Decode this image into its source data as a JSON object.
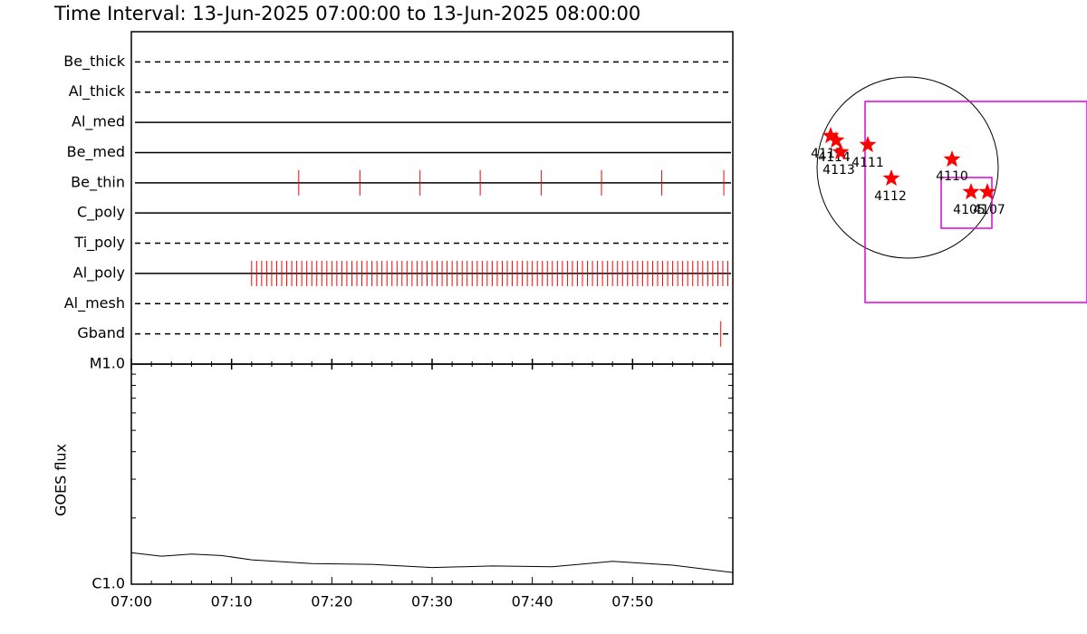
{
  "chart_data": [
    {
      "type": "timeline",
      "title": "Time Interval: 13-Jun-2025 07:00:00 to 13-Jun-2025 08:00:00",
      "xlim": [
        0,
        60
      ],
      "color": "#ff0000",
      "rows": [
        {
          "name": "Be_thick",
          "style": "dashed",
          "events": []
        },
        {
          "name": "Al_thick",
          "style": "dashed",
          "events": []
        },
        {
          "name": "Al_med",
          "style": "solid",
          "events": []
        },
        {
          "name": "Be_med",
          "style": "solid",
          "events": []
        },
        {
          "name": "Be_thin",
          "style": "solid",
          "events": [
            16.7,
            22.8,
            28.8,
            34.8,
            40.9,
            46.9,
            52.9,
            59.1
          ]
        },
        {
          "name": "C_poly",
          "style": "solid",
          "events": []
        },
        {
          "name": "Ti_poly",
          "style": "dashed",
          "events": []
        },
        {
          "name": "Al_poly",
          "style": "solid",
          "events": [
            12,
            12.5,
            13,
            13.5,
            14,
            14.5,
            15,
            15.5,
            16,
            16.5,
            17,
            17.5,
            18,
            18.5,
            19,
            19.5,
            20,
            20.5,
            21,
            21.5,
            22,
            22.5,
            23,
            23.5,
            24,
            24.5,
            25,
            25.5,
            26,
            26.5,
            27,
            27.5,
            28,
            28.5,
            29,
            29.5,
            30,
            30.5,
            31,
            31.5,
            32,
            32.5,
            33,
            33.5,
            34,
            34.5,
            35,
            35.5,
            36,
            36.5,
            37,
            37.5,
            38,
            38.5,
            39,
            39.5,
            40,
            40.5,
            41,
            41.5,
            42,
            42.5,
            43,
            43.5,
            44,
            44.5,
            45,
            45.5,
            46,
            46.5,
            47,
            47.5,
            48,
            48.5,
            49,
            49.5,
            50,
            50.5,
            51,
            51.5,
            52,
            52.5,
            53,
            53.5,
            54,
            54.5,
            55,
            55.5,
            56,
            56.5,
            57,
            57.5,
            58,
            58.5,
            59,
            59.5
          ]
        },
        {
          "name": "Al_mesh",
          "style": "dashed",
          "events": []
        },
        {
          "name": "Gband",
          "style": "dashed",
          "events": [
            58.8
          ]
        }
      ]
    },
    {
      "type": "line",
      "ylabel": "GOES flux",
      "log": true,
      "x": [
        0,
        3,
        6,
        9,
        12,
        18,
        24,
        30,
        36,
        42,
        48,
        54,
        60
      ],
      "values": [
        1.39e-06,
        1.34e-06,
        1.37e-06,
        1.35e-06,
        1.29e-06,
        1.24e-06,
        1.23e-06,
        1.19e-06,
        1.21e-06,
        1.2e-06,
        1.27e-06,
        1.22e-06,
        1.13e-06
      ],
      "xlim": [
        0,
        60
      ],
      "xticks": [
        {
          "value": 0,
          "label": "07:00"
        },
        {
          "value": 10,
          "label": "07:10"
        },
        {
          "value": 20,
          "label": "07:20"
        },
        {
          "value": 30,
          "label": "07:30"
        },
        {
          "value": 40,
          "label": "07:40"
        },
        {
          "value": 50,
          "label": "07:50"
        }
      ],
      "xminor": [
        2,
        4,
        6,
        8,
        12,
        14,
        16,
        18,
        22,
        24,
        26,
        28,
        32,
        34,
        36,
        38,
        42,
        44,
        46,
        48,
        52,
        54,
        56,
        58
      ],
      "ylim": [
        1e-06,
        1e-05
      ],
      "yticks": [
        {
          "value": 1e-06,
          "label": "C1.0"
        },
        {
          "value": 1e-05,
          "label": "M1.0"
        }
      ],
      "yminor": [
        2e-06,
        3e-06,
        4e-06,
        5e-06,
        6e-06,
        7e-06,
        8e-06,
        9e-06
      ]
    }
  ],
  "map": {
    "regions": [
      "4117",
      "4114",
      "4113",
      "4111",
      "4112",
      "4110",
      "4105",
      "4107"
    ]
  }
}
